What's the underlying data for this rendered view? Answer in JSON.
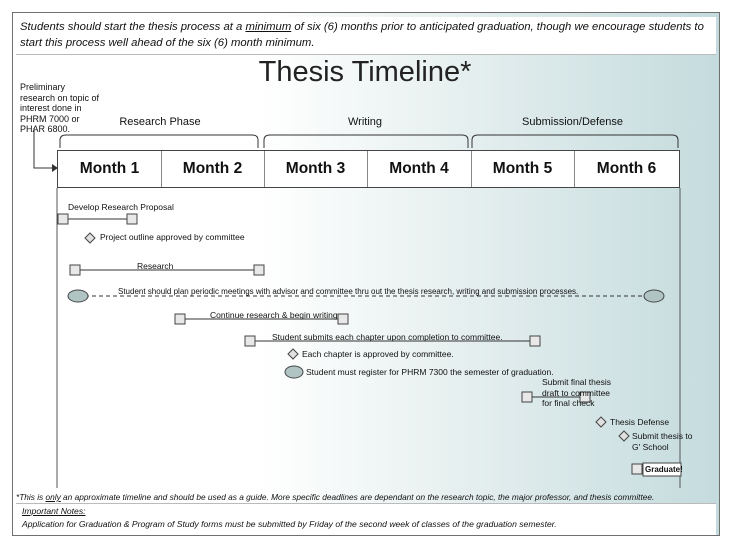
{
  "top_note": {
    "before": "Students should start the thesis process at a ",
    "emphasis": "minimum",
    "after": " of six (6) months prior to anticipated graduation, though we encourage students to start this process well ahead of the six (6) month minimum."
  },
  "title": "Thesis Timeline*",
  "prelim_note": "Preliminary research on topic of interest done in PHRM 7000 or PHAR 6800.",
  "phases": [
    "Research Phase",
    "Writing",
    "Submission/Defense"
  ],
  "months": [
    "Month 1",
    "Month 2",
    "Month 3",
    "Month 4",
    "Month 5",
    "Month 6"
  ],
  "tasks": {
    "develop_proposal": "Develop Research Proposal",
    "outline_approved": "Project outline approved by committee",
    "research": "Research",
    "meetings": "Student should plan periodic meetings with advisor and committee thru out the thesis research, writing and submission processes.",
    "continue_research": "Continue research &  begin writing",
    "submit_chapter": "Student submits each chapter upon completion to committee.",
    "chapter_approved": "Each chapter is approved by committee.",
    "register": "Student must register for PHRM 7300 the semester of graduation.",
    "submit_final": [
      "Submit final thesis",
      "draft to committee",
      "for final check"
    ],
    "defense": "Thesis Defense",
    "submit_school": [
      "Submit thesis to",
      "G' School"
    ],
    "graduate": "Graduate!"
  },
  "bottom_note": {
    "before": "*This is ",
    "emphasis": "only",
    "after": " an approximate timeline and should be used as a guide.  More specific deadlines are dependant on the research topic, the major professor, and thesis committee."
  },
  "important_notes": {
    "heading": "Important Notes:",
    "text": "Application for Graduation  & Program of Study forms must be submitted by Friday of the second week of classes of the graduation semester."
  },
  "colors": {
    "bar_fill": "#e8e8e8",
    "bar_stroke": "#444444",
    "line": "#333333"
  }
}
